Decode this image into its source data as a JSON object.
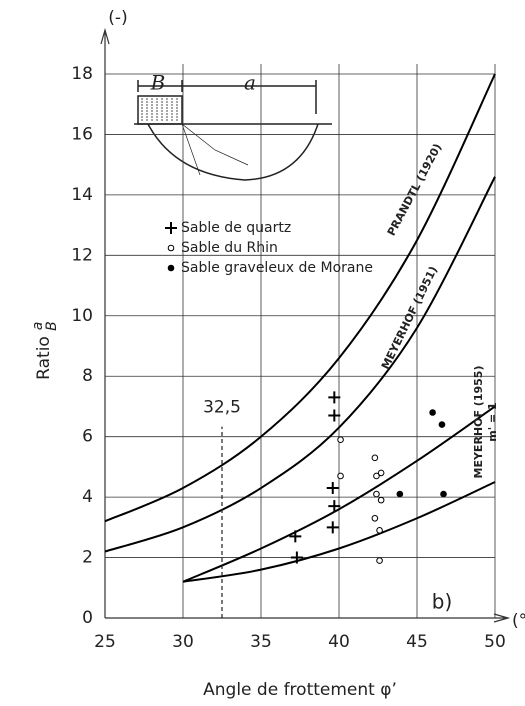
{
  "chart_data": {
    "type": "line",
    "xlabel": "Angle de frottement φ’",
    "ylabel": "Ratio",
    "ylabel_fraction": [
      "a",
      "B"
    ],
    "x_unit": "(°)",
    "y_unit": "(-)",
    "xlim": [
      25,
      50
    ],
    "ylim": [
      0,
      18
    ],
    "xticks": [
      25,
      30,
      35,
      40,
      45,
      50
    ],
    "yticks": [
      0,
      2,
      4,
      6,
      8,
      10,
      12,
      14,
      16,
      18
    ],
    "grid": true,
    "color": "#000000",
    "x": [
      25,
      30,
      35,
      40,
      45,
      50
    ],
    "series": [
      {
        "name": "PRANDTL (1920)",
        "values": [
          3.2,
          4.3,
          6.0,
          8.6,
          12.5,
          18
        ]
      },
      {
        "name": "MEYERHOF (1951)",
        "values": [
          2.2,
          3.0,
          4.3,
          6.3,
          9.6,
          14.6
        ]
      },
      {
        "name": "MEYERHOF (1955)",
        "subname": "m' = 1",
        "values": [
          null,
          1.2,
          2.3,
          3.6,
          5.2,
          7.0
        ]
      },
      {
        "name": null,
        "values": [
          null,
          1.2,
          1.6,
          2.3,
          3.3,
          4.5
        ]
      }
    ],
    "points": [
      {
        "name": "Sable de quartz",
        "marker": "plus",
        "x": [
          37.2,
          37.3,
          39.7,
          39.7,
          39.6,
          39.7,
          39.6
        ],
        "y": [
          2.7,
          2.0,
          7.3,
          6.7,
          4.3,
          3.7,
          3.0
        ]
      },
      {
        "name": "Sable du Rhin",
        "marker": "circle",
        "x": [
          40.1,
          40.1,
          42.3,
          42.4,
          42.7,
          42.4,
          42.7,
          42.3,
          42.6,
          42.6
        ],
        "y": [
          5.9,
          4.7,
          5.3,
          4.7,
          4.8,
          4.1,
          3.9,
          3.3,
          2.9,
          1.9
        ]
      },
      {
        "name": "Sable graveleux de Morane",
        "marker": "dot",
        "x": [
          46.0,
          46.6,
          43.9,
          46.7
        ],
        "y": [
          6.8,
          6.4,
          4.1,
          4.1
        ]
      }
    ],
    "annotations": [
      {
        "text": "32,5",
        "x": 32.5,
        "y": 6
      },
      {
        "text": "b)"
      }
    ],
    "inset_labels": [
      "B",
      "a"
    ]
  }
}
